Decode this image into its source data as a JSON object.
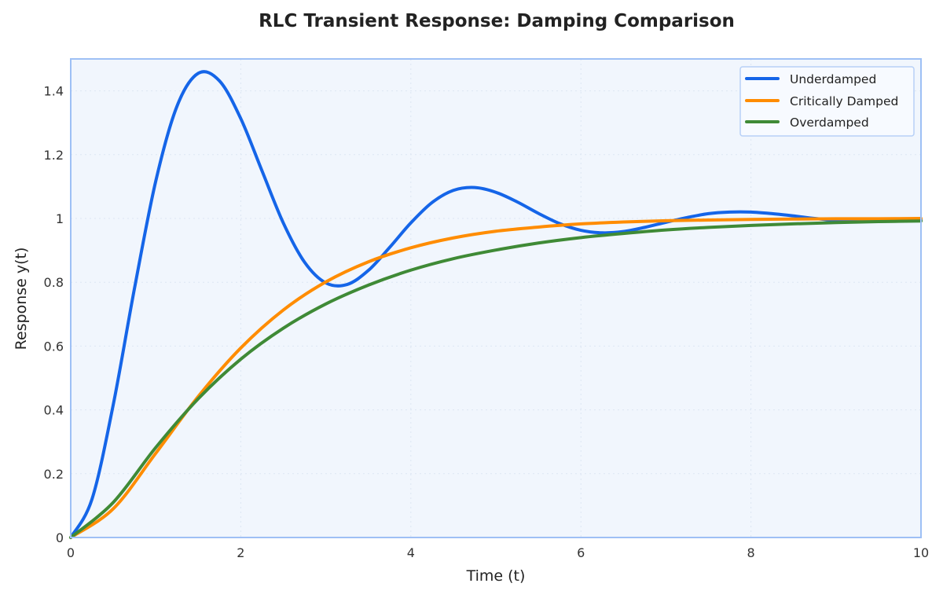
{
  "chart_data": {
    "type": "line",
    "title": "RLC Transient Response: Damping Comparison",
    "xlabel": "Time (t)",
    "ylabel": "Response y(t)",
    "xlim": [
      0,
      10
    ],
    "ylim": [
      0,
      1.5
    ],
    "xticks": [
      0,
      2,
      4,
      6,
      8,
      10
    ],
    "xtick_labels": [
      "0",
      "2",
      "4",
      "6",
      "8",
      "10"
    ],
    "yticks": [
      0,
      0.2,
      0.4,
      0.6,
      0.8,
      1,
      1.2,
      1.4
    ],
    "ytick_labels": [
      "0",
      "0.2",
      "0.4",
      "0.6",
      "0.8",
      "1",
      "1.2",
      "1.4"
    ],
    "grid": true,
    "legend_position": "top-right",
    "background": "#f1f6fd",
    "frame_color": "#9ec0f5",
    "series": [
      {
        "name": "Underdamped",
        "color": "#1565e8",
        "x": [
          0,
          0.25,
          0.5,
          0.75,
          1,
          1.25,
          1.5,
          1.75,
          2,
          2.25,
          2.5,
          2.75,
          3,
          3.25,
          3.5,
          3.75,
          4,
          4.25,
          4.5,
          4.75,
          5,
          5.25,
          5.5,
          5.75,
          6,
          6.25,
          6.5,
          6.75,
          7,
          7.25,
          7.5,
          7.75,
          8,
          8.25,
          8.5,
          8.75,
          9,
          9.25,
          9.5,
          9.75,
          10
        ],
        "y": [
          0,
          0.12,
          0.416,
          0.781,
          1.117,
          1.352,
          1.455,
          1.431,
          1.313,
          1.149,
          0.986,
          0.863,
          0.798,
          0.793,
          0.837,
          0.909,
          0.986,
          1.05,
          1.088,
          1.097,
          1.082,
          1.052,
          1.016,
          0.984,
          0.963,
          0.955,
          0.959,
          0.972,
          0.988,
          1.003,
          1.015,
          1.02,
          1.02,
          1.015,
          1.008,
          1.0,
          0.994,
          0.991,
          0.991,
          0.992,
          0.995
        ]
      },
      {
        "name": "Critically Damped",
        "color": "#ff8c00",
        "x": [
          0,
          0.5,
          1,
          1.5,
          2,
          2.5,
          3,
          3.5,
          4,
          4.5,
          5,
          5.5,
          6,
          6.5,
          7,
          7.5,
          8,
          8.5,
          9,
          9.5,
          10
        ],
        "y": [
          0,
          0.09,
          0.264,
          0.442,
          0.594,
          0.713,
          0.801,
          0.864,
          0.908,
          0.939,
          0.96,
          0.973,
          0.983,
          0.989,
          0.993,
          0.995,
          0.997,
          0.998,
          0.999,
          0.999,
          1.0
        ]
      },
      {
        "name": "Overdamped",
        "color": "#3f8a36",
        "x": [
          0,
          0.5,
          1,
          1.5,
          2,
          2.5,
          3,
          3.5,
          4,
          4.5,
          5,
          5.5,
          6,
          6.5,
          7,
          7.5,
          8,
          8.5,
          9,
          9.5,
          10
        ],
        "y": [
          0,
          0.11,
          0.282,
          0.435,
          0.559,
          0.656,
          0.732,
          0.791,
          0.838,
          0.874,
          0.901,
          0.923,
          0.94,
          0.953,
          0.964,
          0.972,
          0.978,
          0.983,
          0.987,
          0.99,
          0.992
        ]
      }
    ]
  }
}
